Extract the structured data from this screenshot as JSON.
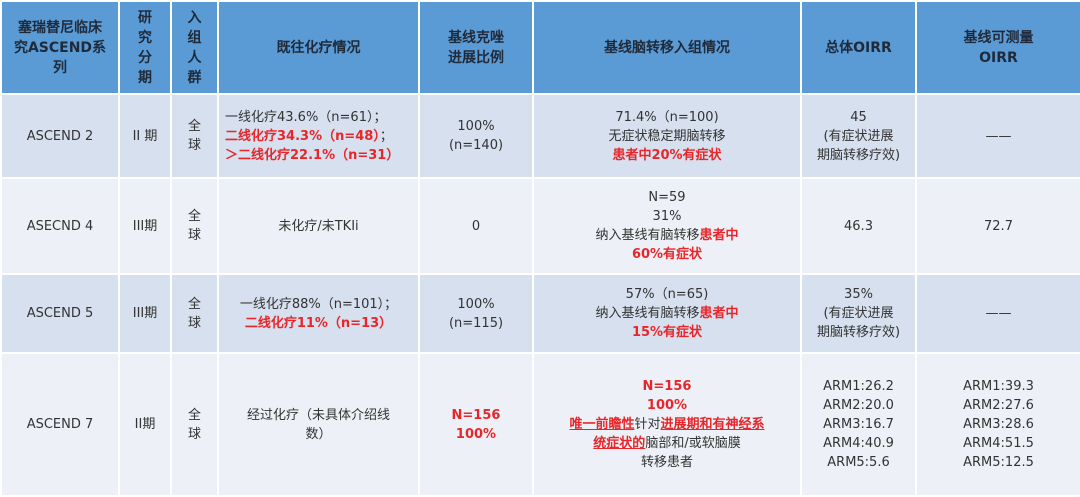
{
  "headers": [
    "塞瑞替尼临床究ASCEND系列",
    "研究分期",
    "入组人群",
    "既往化疗情况",
    "基线克唑进展比例",
    "基线脑转移入组情况",
    "总体OIRR",
    "基线可测量OIRR"
  ],
  "rows": [
    {
      "cells": [
        [
          [
            {
              "t": "ASCEND 2"
            }
          ]
        ],
        [
          [
            {
              "t": "II 期"
            }
          ]
        ],
        [
          [
            {
              "t": "全"
            }
          ],
          [
            {
              "t": "球"
            }
          ]
        ],
        [
          [
            {
              "t": "一线化疗43.6%（n=61）；"
            }
          ],
          [
            {
              "t": "二线化疗34.3%（n=48）",
              "red": true
            },
            {
              "t": "；"
            }
          ],
          [
            {
              "t": "＞二线化疗22.1%（n=31）",
              "red": true
            }
          ]
        ],
        [
          [
            {
              "t": "100%"
            }
          ],
          [
            {
              "t": "(n=140)"
            }
          ]
        ],
        [
          [
            {
              "t": "71.4%（n=100)"
            }
          ],
          [
            {
              "t": "无症状稳定期脑转移"
            }
          ],
          [
            {
              "t": "患者中20%有症状",
              "red": true
            }
          ]
        ],
        [
          [
            {
              "t": "45"
            }
          ],
          [
            {
              "t": "(有症状进展"
            }
          ],
          [
            {
              "t": "期脑转移疗效)"
            }
          ]
        ],
        [
          [
            {
              "t": "——"
            }
          ]
        ]
      ]
    },
    {
      "cells": [
        [
          [
            {
              "t": "ASECND 4"
            }
          ]
        ],
        [
          [
            {
              "t": "III期"
            }
          ]
        ],
        [
          [
            {
              "t": "全"
            }
          ],
          [
            {
              "t": "球"
            }
          ]
        ],
        [
          [
            {
              "t": "未化疗/未TKIi"
            }
          ]
        ],
        [
          [
            {
              "t": "0"
            }
          ]
        ],
        [
          [
            {
              "t": "N=59"
            }
          ],
          [
            {
              "t": "31%"
            }
          ],
          [
            {
              "t": "纳入基线有脑转移"
            },
            {
              "t": "患者中",
              "red": true
            }
          ],
          [
            {
              "t": "60%有症状",
              "red": true
            }
          ]
        ],
        [
          [
            {
              "t": "46.3"
            }
          ]
        ],
        [
          [
            {
              "t": "72.7"
            }
          ]
        ]
      ]
    },
    {
      "cells": [
        [
          [
            {
              "t": "ASCEND 5"
            }
          ]
        ],
        [
          [
            {
              "t": "III期"
            }
          ]
        ],
        [
          [
            {
              "t": "全"
            }
          ],
          [
            {
              "t": "球"
            }
          ]
        ],
        [
          [
            {
              "t": "一线化疗88%（n=101）；"
            }
          ],
          [
            {
              "t": "二线化疗11%（n=13）",
              "red": true
            }
          ]
        ],
        [
          [
            {
              "t": "100%"
            }
          ],
          [
            {
              "t": "(n=115)"
            }
          ]
        ],
        [
          [
            {
              "t": "57%（n=65)"
            }
          ],
          [
            {
              "t": "纳入基线有脑转移"
            },
            {
              "t": "患者中",
              "red": true
            }
          ],
          [
            {
              "t": "15%有症状",
              "red": true
            }
          ]
        ],
        [
          [
            {
              "t": "35%"
            }
          ],
          [
            {
              "t": "(有症状进展"
            }
          ],
          [
            {
              "t": "期脑转移疗效)"
            }
          ]
        ],
        [
          [
            {
              "t": "——"
            }
          ]
        ]
      ]
    },
    {
      "cells": [
        [
          [
            {
              "t": "ASCEND 7"
            }
          ]
        ],
        [
          [
            {
              "t": "II期"
            }
          ]
        ],
        [
          [
            {
              "t": "全"
            }
          ],
          [
            {
              "t": "球"
            }
          ]
        ],
        [
          [
            {
              "t": "经过化疗（未具体介绍线"
            }
          ],
          [
            {
              "t": "数）"
            }
          ]
        ],
        [
          [
            {
              "t": "N=156",
              "red": true
            }
          ],
          [
            {
              "t": "100%",
              "red": true
            }
          ]
        ],
        [
          [
            {
              "t": "N=156",
              "red": true
            }
          ],
          [
            {
              "t": "100%",
              "red": true
            }
          ],
          [
            {
              "t": "唯一前瞻性",
              "red": true,
              "ul": true
            },
            {
              "t": "针对"
            },
            {
              "t": "进展期和有神经系",
              "red": true,
              "ul": true
            }
          ],
          [
            {
              "t": "统症状的",
              "red": true,
              "ul": true
            },
            {
              "t": "脑部和/或软脑膜"
            }
          ],
          [
            {
              "t": "转移患者"
            }
          ]
        ],
        [
          [
            {
              "t": "ARM1:26.2"
            }
          ],
          [
            {
              "t": "ARM2:20.0"
            }
          ],
          [
            {
              "t": "ARM3:16.7"
            }
          ],
          [
            {
              "t": "ARM4:40.9"
            }
          ],
          [
            {
              "t": "ARM5:5.6"
            }
          ]
        ],
        [
          [
            {
              "t": "ARM1:39.3"
            }
          ],
          [
            {
              "t": "ARM2:27.6"
            }
          ],
          [
            {
              "t": "ARM3:28.6"
            }
          ],
          [
            {
              "t": "ARM4:51.5"
            }
          ],
          [
            {
              "t": "ARM5:12.5"
            }
          ]
        ]
      ]
    }
  ],
  "colors": {
    "header": "#5b9bd5",
    "row_odd": "#d6e0ee",
    "row_even": "#edf0f6",
    "highlight": "#e8262a"
  }
}
